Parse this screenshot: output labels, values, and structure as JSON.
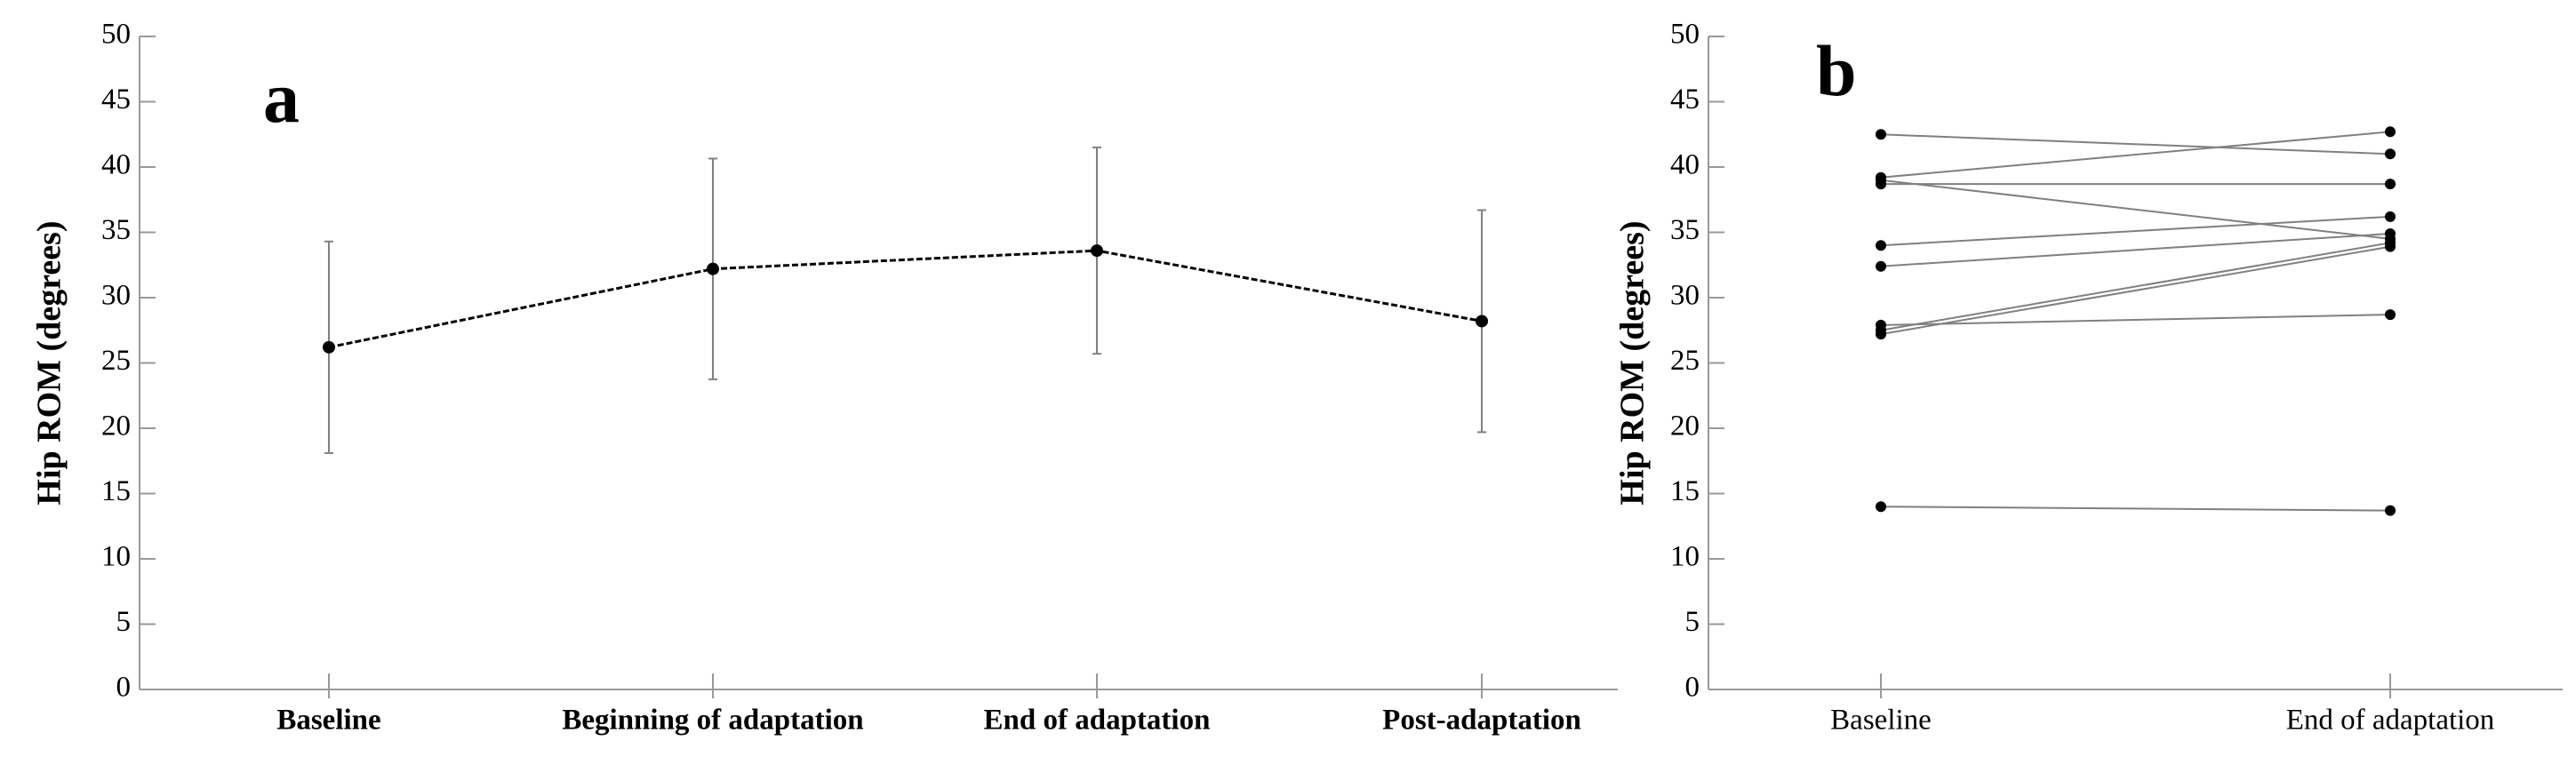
{
  "chart_data": [
    {
      "type": "errorbar",
      "annotation": "a",
      "y_label": "Hip ROM (degrees)",
      "categories": [
        "Baseline",
        "Beginning of adaptation",
        "End of adaptation",
        "Post-adaptation"
      ],
      "values": [
        26.2,
        32.2,
        33.6,
        28.2
      ],
      "errors": [
        8.1,
        8.45,
        7.9,
        8.5
      ],
      "color": "#000000",
      "error_color": "#808080",
      "ylim": [
        0,
        50
      ],
      "yticks": [
        0,
        5,
        10,
        15,
        20,
        25,
        30,
        35,
        40,
        45,
        50
      ]
    },
    {
      "type": "paired",
      "annotation": "b",
      "y_label": "Hip ROM (degrees)",
      "categories": [
        "Baseline",
        "End of adaptation"
      ],
      "series": [
        {
          "color": "#808080",
          "values": [
            42.5,
            41.0
          ]
        },
        {
          "color": "#808080",
          "values": [
            39.2,
            42.7
          ]
        },
        {
          "color": "#808080",
          "values": [
            39.0,
            34.5
          ]
        },
        {
          "color": "#808080",
          "values": [
            38.7,
            38.7
          ]
        },
        {
          "color": "#808080",
          "values": [
            34.0,
            36.2
          ]
        },
        {
          "color": "#808080",
          "values": [
            32.4,
            34.9
          ]
        },
        {
          "color": "#808080",
          "values": [
            27.9,
            28.7
          ]
        },
        {
          "color": "#808080",
          "values": [
            27.5,
            34.2
          ]
        },
        {
          "color": "#808080",
          "values": [
            27.2,
            33.9
          ]
        },
        {
          "color": "#808080",
          "values": [
            14.0,
            13.7
          ]
        }
      ],
      "marker_color": "#000000",
      "ylim": [
        0,
        50
      ],
      "yticks": [
        0,
        5,
        10,
        15,
        20,
        25,
        30,
        35,
        40,
        45,
        50
      ]
    }
  ]
}
